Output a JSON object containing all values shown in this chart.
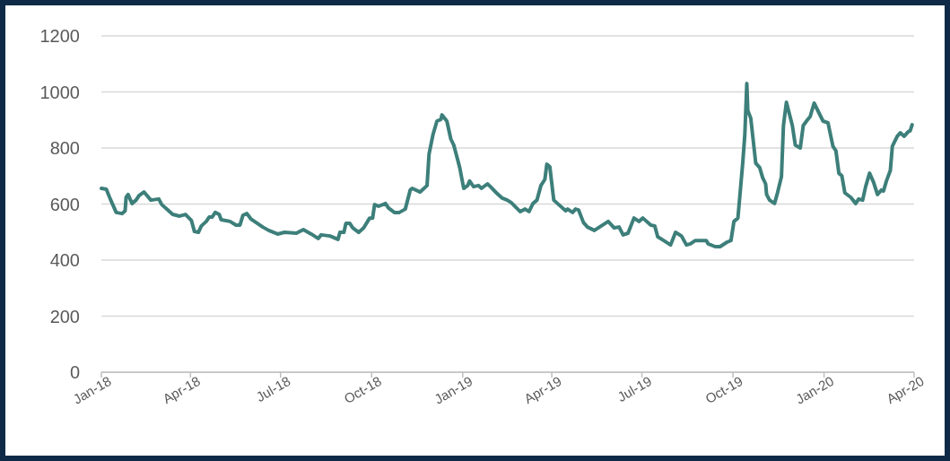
{
  "chart_data": {
    "type": "line",
    "x": [
      "2018-01-01",
      "2018-01-06",
      "2018-01-10",
      "2018-01-16",
      "2018-01-22",
      "2018-01-25",
      "2018-01-26",
      "2018-01-28",
      "2018-02-01",
      "2018-02-05",
      "2018-02-08",
      "2018-02-13",
      "2018-02-20",
      "2018-02-28",
      "2018-03-03",
      "2018-03-09",
      "2018-03-14",
      "2018-03-21",
      "2018-03-27",
      "2018-04-02",
      "2018-04-05",
      "2018-04-09",
      "2018-04-12",
      "2018-04-17",
      "2018-04-20",
      "2018-04-23",
      "2018-04-26",
      "2018-04-30",
      "2018-05-02",
      "2018-05-11",
      "2018-05-17",
      "2018-05-21",
      "2018-05-24",
      "2018-05-28",
      "2018-06-01",
      "2018-06-13",
      "2018-06-19",
      "2018-06-28",
      "2018-07-05",
      "2018-07-17",
      "2018-07-24",
      "2018-08-01",
      "2018-08-08",
      "2018-08-11",
      "2018-08-20",
      "2018-08-28",
      "2018-08-30",
      "2018-09-03",
      "2018-09-05",
      "2018-09-09",
      "2018-09-12",
      "2018-09-18",
      "2018-09-23",
      "2018-09-29",
      "2018-10-02",
      "2018-10-04",
      "2018-10-08",
      "2018-10-15",
      "2018-10-18",
      "2018-10-24",
      "2018-10-29",
      "2018-11-04",
      "2018-11-09",
      "2018-11-11",
      "2018-11-19",
      "2018-11-26",
      "2018-11-28",
      "2018-12-02",
      "2018-12-06",
      "2018-12-10",
      "2018-12-11",
      "2018-12-16",
      "2018-12-20",
      "2018-12-23",
      "2018-12-29",
      "2019-01-02",
      "2019-01-06",
      "2019-01-08",
      "2019-01-12",
      "2019-01-17",
      "2019-01-20",
      "2019-01-26",
      "2019-01-29",
      "2019-02-04",
      "2019-02-10",
      "2019-02-15",
      "2019-02-19",
      "2019-02-28",
      "2019-03-05",
      "2019-03-09",
      "2019-03-13",
      "2019-03-17",
      "2019-03-21",
      "2019-03-25",
      "2019-03-27",
      "2019-03-30",
      "2019-04-03",
      "2019-04-08",
      "2019-04-15",
      "2019-04-17",
      "2019-04-22",
      "2019-04-25",
      "2019-04-28",
      "2019-05-03",
      "2019-05-07",
      "2019-05-14",
      "2019-05-28",
      "2019-06-03",
      "2019-06-08",
      "2019-06-12",
      "2019-06-17",
      "2019-06-23",
      "2019-06-28",
      "2019-07-02",
      "2019-07-10",
      "2019-07-14",
      "2019-07-17",
      "2019-07-23",
      "2019-07-30",
      "2019-08-04",
      "2019-08-10",
      "2019-08-15",
      "2019-08-19",
      "2019-08-24",
      "2019-09-04",
      "2019-09-06",
      "2019-09-13",
      "2019-09-18",
      "2019-09-25",
      "2019-09-29",
      "2019-10-02",
      "2019-10-06",
      "2019-10-08",
      "2019-10-11",
      "2019-10-13",
      "2019-10-15",
      "2019-10-16",
      "2019-10-19",
      "2019-10-24",
      "2019-10-28",
      "2019-10-31",
      "2019-11-03",
      "2019-11-04",
      "2019-11-07",
      "2019-11-12",
      "2019-11-15",
      "2019-11-19",
      "2019-11-21",
      "2019-11-24",
      "2019-11-30",
      "2019-12-03",
      "2019-12-08",
      "2019-12-11",
      "2019-12-15",
      "2019-12-18",
      "2019-12-22",
      "2019-12-31",
      "2020-01-05",
      "2020-01-10",
      "2020-01-13",
      "2020-01-16",
      "2020-01-19",
      "2020-01-22",
      "2020-01-28",
      "2020-02-02",
      "2020-02-05",
      "2020-02-09",
      "2020-02-12",
      "2020-02-16",
      "2020-02-20",
      "2020-02-24",
      "2020-02-28",
      "2020-03-01",
      "2020-03-04",
      "2020-03-08",
      "2020-03-10",
      "2020-03-15",
      "2020-03-18",
      "2020-03-22",
      "2020-03-26",
      "2020-03-28",
      "2020-03-30"
    ],
    "series": [
      {
        "color": "#3d7f7a",
        "values": [
          656,
          653,
          618,
          570,
          566,
          576,
          624,
          634,
          602,
          614,
          630,
          643,
          614,
          618,
          598,
          579,
          563,
          557,
          563,
          541,
          502,
          499,
          522,
          538,
          554,
          554,
          570,
          563,
          544,
          538,
          525,
          525,
          560,
          566,
          547,
          518,
          506,
          493,
          499,
          496,
          509,
          493,
          477,
          490,
          486,
          474,
          499,
          499,
          531,
          531,
          515,
          499,
          515,
          550,
          550,
          598,
          592,
          602,
          586,
          570,
          570,
          582,
          650,
          656,
          643,
          666,
          778,
          848,
          896,
          902,
          918,
          896,
          832,
          810,
          730,
          656,
          666,
          682,
          662,
          666,
          656,
          672,
          662,
          640,
          621,
          614,
          605,
          573,
          582,
          573,
          602,
          614,
          666,
          688,
          742,
          733,
          614,
          598,
          576,
          582,
          570,
          582,
          579,
          534,
          518,
          506,
          538,
          515,
          518,
          490,
          496,
          550,
          538,
          550,
          525,
          522,
          483,
          470,
          454,
          499,
          486,
          454,
          458,
          470,
          470,
          458,
          448,
          448,
          464,
          470,
          538,
          550,
          630,
          752,
          848,
          1030,
          934,
          906,
          746,
          730,
          694,
          672,
          634,
          614,
          602,
          640,
          698,
          880,
          963,
          880,
          810,
          800,
          880,
          899,
          912,
          960,
          896,
          890,
          806,
          790,
          710,
          701,
          640,
          624,
          602,
          618,
          614,
          662,
          710,
          678,
          634,
          650,
          646,
          682,
          720,
          806,
          842,
          854,
          842,
          858,
          861,
          883
        ]
      }
    ],
    "xlim": [
      "2018-01-01",
      "2020-04-01"
    ],
    "xticks": [
      {
        "value": "2018-01-01",
        "label": "Jan-18"
      },
      {
        "value": "2018-04-01",
        "label": "Apr-18"
      },
      {
        "value": "2018-07-01",
        "label": "Jul-18"
      },
      {
        "value": "2018-10-01",
        "label": "Oct-18"
      },
      {
        "value": "2019-01-01",
        "label": "Jan-19"
      },
      {
        "value": "2019-04-01",
        "label": "Apr-19"
      },
      {
        "value": "2019-07-01",
        "label": "Jul-19"
      },
      {
        "value": "2019-10-01",
        "label": "Oct-19"
      },
      {
        "value": "2020-01-01",
        "label": "Jan-20"
      },
      {
        "value": "2020-04-01",
        "label": "Apr-20"
      }
    ],
    "ylim": [
      0,
      1200
    ],
    "yticks": [
      0,
      200,
      400,
      600,
      800,
      1000,
      1200
    ],
    "grid": "y"
  }
}
